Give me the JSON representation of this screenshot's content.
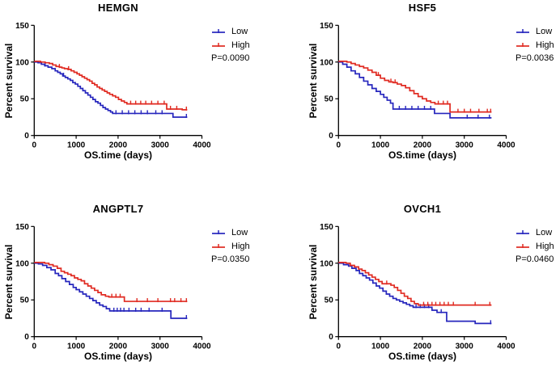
{
  "figure": {
    "background": "#ffffff",
    "rows": 2,
    "cols": 2,
    "text_color": "#000000"
  },
  "colors": {
    "low": "#2626bd",
    "high": "#e02a21",
    "axis": "#000000",
    "text": "#000000"
  },
  "chart_data": [
    {
      "type": "line",
      "subtype": "kaplan-meier-step",
      "title": "HEMGN",
      "xlabel": "OS.time (days)",
      "ylabel": "Percent survival",
      "xlim": [
        0,
        4000
      ],
      "ylim": [
        0,
        150
      ],
      "xticks": [
        0,
        1000,
        2000,
        3000,
        4000
      ],
      "yticks": [
        0,
        50,
        100,
        150
      ],
      "grid": false,
      "legend_position": "right",
      "p_label": "P=0.0090",
      "series": [
        {
          "name": "Low",
          "color": "#2626bd",
          "points": [
            [
              0,
              100
            ],
            [
              90,
              99
            ],
            [
              170,
              97
            ],
            [
              250,
              95
            ],
            [
              330,
              93
            ],
            [
              420,
              91
            ],
            [
              500,
              88
            ],
            [
              560,
              86
            ],
            [
              620,
              84
            ],
            [
              680,
              81
            ],
            [
              740,
              79
            ],
            [
              800,
              77
            ],
            [
              860,
              75
            ],
            [
              920,
              72
            ],
            [
              980,
              70
            ],
            [
              1040,
              67
            ],
            [
              1100,
              64
            ],
            [
              1160,
              61
            ],
            [
              1220,
              58
            ],
            [
              1280,
              55
            ],
            [
              1340,
              52
            ],
            [
              1400,
              49
            ],
            [
              1460,
              46
            ],
            [
              1520,
              44
            ],
            [
              1580,
              41
            ],
            [
              1640,
              38
            ],
            [
              1700,
              36
            ],
            [
              1760,
              34
            ],
            [
              1820,
              32
            ],
            [
              1870,
              30
            ],
            [
              3310,
              25
            ],
            [
              3650,
              25
            ]
          ],
          "censor_x": [
            260,
            700,
            1950,
            2100,
            2250,
            2400,
            2550,
            2700,
            2900,
            3050,
            3630
          ]
        },
        {
          "name": "High",
          "color": "#e02a21",
          "points": [
            [
              0,
              101
            ],
            [
              150,
              100
            ],
            [
              260,
              99
            ],
            [
              360,
              98
            ],
            [
              440,
              96
            ],
            [
              520,
              94
            ],
            [
              600,
              93
            ],
            [
              660,
              92
            ],
            [
              720,
              91
            ],
            [
              800,
              90
            ],
            [
              880,
              88
            ],
            [
              950,
              86
            ],
            [
              1020,
              84
            ],
            [
              1080,
              82
            ],
            [
              1140,
              80
            ],
            [
              1200,
              78
            ],
            [
              1260,
              76
            ],
            [
              1320,
              74
            ],
            [
              1380,
              71
            ],
            [
              1440,
              69
            ],
            [
              1500,
              66
            ],
            [
              1560,
              64
            ],
            [
              1620,
              62
            ],
            [
              1680,
              60
            ],
            [
              1740,
              58
            ],
            [
              1800,
              56
            ],
            [
              1870,
              54
            ],
            [
              1940,
              52
            ],
            [
              2010,
              49
            ],
            [
              2080,
              47
            ],
            [
              2150,
              45
            ],
            [
              2210,
              43
            ],
            [
              3160,
              36
            ],
            [
              3530,
              35
            ],
            [
              3650,
              35
            ]
          ],
          "censor_x": [
            600,
            820,
            2300,
            2420,
            2540,
            2660,
            2800,
            2950,
            3100,
            3250,
            3400,
            3630
          ]
        }
      ]
    },
    {
      "type": "line",
      "subtype": "kaplan-meier-step",
      "title": "HSF5",
      "xlabel": "OS.time (days)",
      "ylabel": "Percent survival",
      "xlim": [
        0,
        4000
      ],
      "ylim": [
        0,
        150
      ],
      "xticks": [
        0,
        1000,
        2000,
        3000,
        4000
      ],
      "yticks": [
        0,
        50,
        100,
        150
      ],
      "grid": false,
      "legend_position": "right",
      "p_label": "P=0.0036",
      "series": [
        {
          "name": "Low",
          "color": "#2626bd",
          "points": [
            [
              0,
              100
            ],
            [
              100,
              97
            ],
            [
              200,
              93
            ],
            [
              300,
              88
            ],
            [
              400,
              84
            ],
            [
              500,
              79
            ],
            [
              600,
              74
            ],
            [
              700,
              69
            ],
            [
              800,
              64
            ],
            [
              900,
              60
            ],
            [
              1000,
              56
            ],
            [
              1080,
              52
            ],
            [
              1160,
              48
            ],
            [
              1240,
              44
            ],
            [
              1300,
              36
            ],
            [
              2290,
              30
            ],
            [
              2660,
              24
            ],
            [
              3650,
              24
            ]
          ],
          "censor_x": [
            1450,
            1600,
            1750,
            1900,
            2050,
            2200,
            3070,
            3330,
            3600
          ]
        },
        {
          "name": "High",
          "color": "#e02a21",
          "points": [
            [
              0,
              101
            ],
            [
              200,
              100
            ],
            [
              300,
              98
            ],
            [
              400,
              96
            ],
            [
              500,
              94
            ],
            [
              600,
              92
            ],
            [
              700,
              89
            ],
            [
              800,
              86
            ],
            [
              900,
              82
            ],
            [
              1000,
              78
            ],
            [
              1100,
              75
            ],
            [
              1200,
              73
            ],
            [
              1300,
              72
            ],
            [
              1400,
              70
            ],
            [
              1500,
              68
            ],
            [
              1600,
              65
            ],
            [
              1700,
              61
            ],
            [
              1800,
              57
            ],
            [
              1900,
              53
            ],
            [
              2000,
              50
            ],
            [
              2100,
              47
            ],
            [
              2200,
              45
            ],
            [
              2300,
              43
            ],
            [
              2660,
              32
            ],
            [
              3650,
              32
            ]
          ],
          "censor_x": [
            950,
            1250,
            1350,
            2380,
            2500,
            2600,
            2850,
            3000,
            3150,
            3350,
            3550,
            3630
          ]
        }
      ]
    },
    {
      "type": "line",
      "subtype": "kaplan-meier-step",
      "title": "ANGPTL7",
      "xlabel": "OS.time (days)",
      "ylabel": "Percent survival",
      "xlim": [
        0,
        4000
      ],
      "ylim": [
        0,
        150
      ],
      "xticks": [
        0,
        1000,
        2000,
        3000,
        4000
      ],
      "yticks": [
        0,
        50,
        100,
        150
      ],
      "grid": false,
      "legend_position": "right",
      "p_label": "P=0.0350",
      "series": [
        {
          "name": "Low",
          "color": "#2626bd",
          "points": [
            [
              0,
              100
            ],
            [
              100,
              99
            ],
            [
              200,
              97
            ],
            [
              300,
              94
            ],
            [
              400,
              91
            ],
            [
              500,
              86
            ],
            [
              580,
              83
            ],
            [
              660,
              79
            ],
            [
              750,
              75
            ],
            [
              840,
              71
            ],
            [
              930,
              67
            ],
            [
              1000,
              64
            ],
            [
              1080,
              61
            ],
            [
              1160,
              58
            ],
            [
              1240,
              55
            ],
            [
              1320,
              52
            ],
            [
              1400,
              49
            ],
            [
              1480,
              46
            ],
            [
              1560,
              43
            ],
            [
              1640,
              41
            ],
            [
              1720,
              38
            ],
            [
              1800,
              35
            ],
            [
              3260,
              25
            ],
            [
              3650,
              25
            ]
          ],
          "censor_x": [
            1900,
            1980,
            2060,
            2140,
            2260,
            2420,
            2550,
            2740,
            3050,
            3630
          ]
        },
        {
          "name": "High",
          "color": "#e02a21",
          "points": [
            [
              0,
              101
            ],
            [
              250,
              100
            ],
            [
              350,
              98
            ],
            [
              450,
              96
            ],
            [
              550,
              93
            ],
            [
              640,
              89
            ],
            [
              720,
              87
            ],
            [
              800,
              85
            ],
            [
              880,
              83
            ],
            [
              960,
              80
            ],
            [
              1040,
              78
            ],
            [
              1120,
              76
            ],
            [
              1200,
              72
            ],
            [
              1280,
              69
            ],
            [
              1360,
              66
            ],
            [
              1440,
              63
            ],
            [
              1520,
              60
            ],
            [
              1600,
              57
            ],
            [
              1700,
              55
            ],
            [
              1780,
              54
            ],
            [
              2150,
              48
            ],
            [
              3650,
              48
            ]
          ],
          "censor_x": [
            1850,
            1950,
            2050,
            2450,
            2700,
            2950,
            3250,
            3350,
            3500,
            3630
          ]
        }
      ]
    },
    {
      "type": "line",
      "subtype": "kaplan-meier-step",
      "title": "OVCH1",
      "xlabel": "OS.time (days)",
      "ylabel": "Percent survival",
      "xlim": [
        0,
        4000
      ],
      "ylim": [
        0,
        150
      ],
      "xticks": [
        0,
        1000,
        2000,
        3000,
        4000
      ],
      "yticks": [
        0,
        50,
        100,
        150
      ],
      "grid": false,
      "legend_position": "right",
      "p_label": "P=0.0460",
      "series": [
        {
          "name": "Low",
          "color": "#2626bd",
          "points": [
            [
              0,
              100
            ],
            [
              120,
              98
            ],
            [
              240,
              96
            ],
            [
              320,
              93
            ],
            [
              420,
              90
            ],
            [
              500,
              86
            ],
            [
              580,
              83
            ],
            [
              660,
              80
            ],
            [
              740,
              77
            ],
            [
              820,
              73
            ],
            [
              900,
              69
            ],
            [
              980,
              66
            ],
            [
              1060,
              62
            ],
            [
              1140,
              58
            ],
            [
              1220,
              55
            ],
            [
              1300,
              52
            ],
            [
              1380,
              50
            ],
            [
              1460,
              48
            ],
            [
              1540,
              46
            ],
            [
              1620,
              44
            ],
            [
              1700,
              42
            ],
            [
              1780,
              40
            ],
            [
              2230,
              36
            ],
            [
              2350,
              33
            ],
            [
              2580,
              21
            ],
            [
              3260,
              18
            ],
            [
              3650,
              18
            ]
          ],
          "censor_x": [
            1850,
            1950,
            2050,
            2150,
            2450,
            3630
          ]
        },
        {
          "name": "High",
          "color": "#e02a21",
          "points": [
            [
              0,
              101
            ],
            [
              180,
              100
            ],
            [
              280,
              97
            ],
            [
              380,
              95
            ],
            [
              480,
              92
            ],
            [
              560,
              90
            ],
            [
              640,
              87
            ],
            [
              720,
              84
            ],
            [
              800,
              81
            ],
            [
              880,
              78
            ],
            [
              960,
              75
            ],
            [
              1040,
              72
            ],
            [
              1250,
              70
            ],
            [
              1330,
              67
            ],
            [
              1410,
              63
            ],
            [
              1490,
              59
            ],
            [
              1570,
              55
            ],
            [
              1650,
              52
            ],
            [
              1730,
              48
            ],
            [
              1810,
              45
            ],
            [
              1900,
              43
            ],
            [
              3650,
              43
            ]
          ],
          "censor_x": [
            1150,
            2030,
            2130,
            2230,
            2320,
            2420,
            2520,
            2620,
            2740,
            3260,
            3610
          ]
        }
      ]
    }
  ]
}
